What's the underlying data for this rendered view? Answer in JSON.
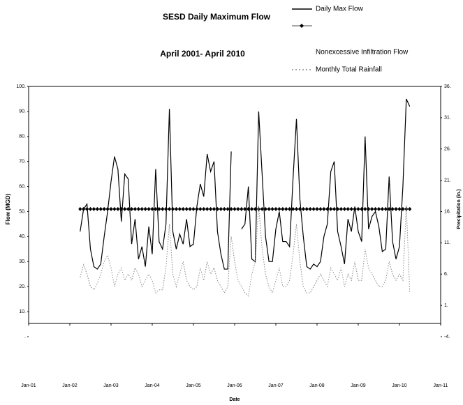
{
  "chart_data": {
    "type": "line",
    "title": "SESD Daily Maximum Flow",
    "subtitle": "April 2001- April 2010",
    "xlabel": "Date",
    "ylabel": "Flow (MGD)",
    "y2label": "Precipitation (in.)",
    "xlim": [
      "2001-01",
      "2011-01"
    ],
    "xticks": [
      {
        "value": "2001-01",
        "label": "Jan-01"
      },
      {
        "value": "2002-01",
        "label": "Jan-02"
      },
      {
        "value": "2003-01",
        "label": "Jan-03"
      },
      {
        "value": "2004-01",
        "label": "Jan-04"
      },
      {
        "value": "2005-01",
        "label": "Jan-05"
      },
      {
        "value": "2006-01",
        "label": "Jan-06"
      },
      {
        "value": "2007-01",
        "label": "Jan-07"
      },
      {
        "value": "2008-01",
        "label": "Jan-08"
      },
      {
        "value": "2009-01",
        "label": "Jan-09"
      },
      {
        "value": "2010-01",
        "label": "Jan-10"
      },
      {
        "value": "2011-01",
        "label": "Jan-11"
      }
    ],
    "ylim": [
      0,
      100
    ],
    "yticks": [
      {
        "value": 0,
        "label": "."
      },
      {
        "value": 10,
        "label": "10."
      },
      {
        "value": 20,
        "label": "20."
      },
      {
        "value": 30,
        "label": "30."
      },
      {
        "value": 40,
        "label": "40."
      },
      {
        "value": 50,
        "label": "50."
      },
      {
        "value": 60,
        "label": "60."
      },
      {
        "value": 70,
        "label": "70."
      },
      {
        "value": 80,
        "label": "80."
      },
      {
        "value": 90,
        "label": "90."
      },
      {
        "value": 100,
        "label": "100."
      }
    ],
    "y2lim": [
      -4,
      36
    ],
    "y2ticks": [
      {
        "value": -4,
        "label": "-4."
      },
      {
        "value": 1,
        "label": "1."
      },
      {
        "value": 6,
        "label": "6."
      },
      {
        "value": 11,
        "label": "11."
      },
      {
        "value": 16,
        "label": "16."
      },
      {
        "value": 21,
        "label": "21."
      },
      {
        "value": 26,
        "label": "26."
      },
      {
        "value": 31,
        "label": "31."
      },
      {
        "value": 36,
        "label": "36."
      }
    ],
    "x": [
      "2002-04",
      "2002-05",
      "2002-06",
      "2002-07",
      "2002-08",
      "2002-09",
      "2002-10",
      "2002-11",
      "2002-12",
      "2003-01",
      "2003-02",
      "2003-03",
      "2003-04",
      "2003-05",
      "2003-06",
      "2003-07",
      "2003-08",
      "2003-09",
      "2003-10",
      "2003-11",
      "2003-12",
      "2004-01",
      "2004-02",
      "2004-03",
      "2004-04",
      "2004-05",
      "2004-06",
      "2004-07",
      "2004-08",
      "2004-09",
      "2004-10",
      "2004-11",
      "2004-12",
      "2005-01",
      "2005-02",
      "2005-03",
      "2005-04",
      "2005-05",
      "2005-06",
      "2005-07",
      "2005-08",
      "2005-09",
      "2005-10",
      "2005-11",
      "2005-12",
      "2006-01",
      "2006-02",
      "2006-03",
      "2006-04",
      "2006-05",
      "2006-06",
      "2006-07",
      "2006-08",
      "2006-09",
      "2006-10",
      "2006-11",
      "2006-12",
      "2007-01",
      "2007-02",
      "2007-03",
      "2007-04",
      "2007-05",
      "2007-06",
      "2007-07",
      "2007-08",
      "2007-09",
      "2007-10",
      "2007-11",
      "2007-12",
      "2008-01",
      "2008-02",
      "2008-03",
      "2008-04",
      "2008-05",
      "2008-06",
      "2008-07",
      "2008-08",
      "2008-09",
      "2008-10",
      "2008-11",
      "2008-12",
      "2009-01",
      "2009-02",
      "2009-03",
      "2009-04",
      "2009-05",
      "2009-06",
      "2009-07",
      "2009-08",
      "2009-09",
      "2009-10",
      "2009-11",
      "2009-12",
      "2010-01",
      "2010-02",
      "2010-03",
      "2010-04"
    ],
    "series": [
      {
        "name": "Daily Max Flow",
        "color": "#000000",
        "dash": "solid",
        "values": [
          42,
          51,
          53,
          35,
          28,
          27,
          29,
          40,
          50,
          62,
          72,
          67,
          46,
          65,
          63,
          37,
          47,
          31,
          36,
          28,
          44,
          33,
          67,
          38,
          35,
          45,
          91,
          42,
          35,
          41,
          37,
          47,
          36,
          37,
          52,
          61,
          56,
          73,
          66,
          70,
          42,
          33,
          27,
          27,
          74,
          null,
          null,
          43,
          45,
          60,
          31,
          30,
          90,
          65,
          40,
          30,
          30,
          43,
          50,
          38,
          38,
          36,
          63,
          87,
          55,
          40,
          28,
          27,
          29,
          28,
          30,
          40,
          45,
          66,
          70,
          42,
          36,
          29,
          47,
          42,
          52,
          42,
          38,
          80,
          43,
          48,
          50,
          44,
          34,
          35,
          64,
          38,
          31,
          36,
          60,
          95,
          92
        ]
      },
      {
        "name": "Nonexcessive Infiltration Flow",
        "color": "#000000",
        "dash": "solid",
        "marker": "diamond",
        "values": [
          51,
          51,
          51,
          51,
          51,
          51,
          51,
          51,
          51,
          51,
          51,
          51,
          51,
          51,
          51,
          51,
          51,
          51,
          51,
          51,
          51,
          51,
          51,
          51,
          51,
          51,
          51,
          51,
          51,
          51,
          51,
          51,
          51,
          51,
          51,
          51,
          51,
          51,
          51,
          51,
          51,
          51,
          51,
          51,
          51,
          51,
          51,
          51,
          51,
          51,
          51,
          51,
          51,
          51,
          51,
          51,
          51,
          51,
          51,
          51,
          51,
          51,
          51,
          51,
          51,
          51,
          51,
          51,
          51,
          51,
          51,
          51,
          51,
          51,
          51,
          51,
          51,
          51,
          51,
          51,
          51,
          51,
          51,
          51,
          51,
          51,
          51,
          51,
          51,
          51,
          51,
          51,
          51,
          51,
          51,
          51,
          51
        ]
      },
      {
        "name": "Monthly Total Rainfall",
        "color": "#888888",
        "dash": "dotted",
        "axis": "y2",
        "values": [
          5.5,
          7.5,
          6,
          4,
          3.5,
          4.5,
          6,
          8,
          9,
          7,
          4,
          6,
          7,
          5,
          6,
          5,
          7,
          6,
          4,
          5,
          6,
          5,
          3,
          3.5,
          3.5,
          7,
          14,
          6,
          4,
          6,
          8,
          5,
          4,
          3.5,
          4,
          7,
          5,
          8,
          6,
          7,
          5,
          4,
          3,
          4,
          12,
          8,
          5,
          4,
          3,
          2.5,
          6,
          8,
          17,
          10,
          6,
          4,
          3,
          5,
          7,
          4,
          4,
          5,
          9,
          14,
          8,
          4,
          3,
          3,
          4,
          5,
          6,
          5,
          4,
          7,
          6,
          5,
          7,
          4,
          6,
          5,
          8,
          5,
          5,
          10,
          7,
          6,
          5,
          4,
          4,
          5,
          8,
          6,
          5,
          6,
          5,
          17,
          3
        ]
      }
    ]
  }
}
